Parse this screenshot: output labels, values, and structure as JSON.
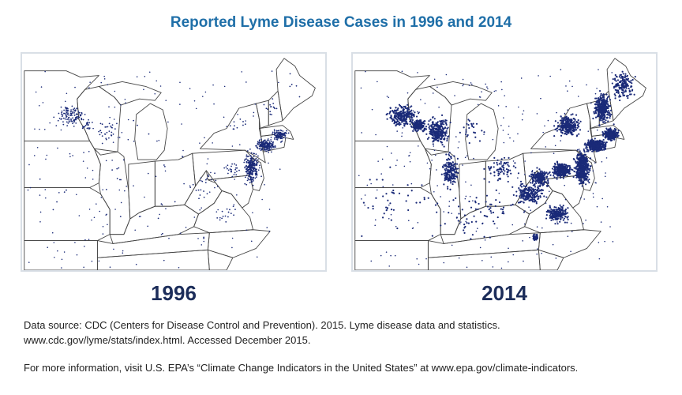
{
  "title": "Reported Lyme Disease Cases in 1996 and 2014",
  "maps": [
    {
      "year": "1996"
    },
    {
      "year": "2014"
    }
  ],
  "source_line1": "Data source: CDC (Centers for Disease Control and Prevention). 2015. Lyme disease data and statistics.",
  "source_line2": "www.cdc.gov/lyme/stats/index.html. Accessed December 2015.",
  "more_info": "For more information, visit U.S. EPA’s “Climate Change Indicators in the United States” at www.epa.gov/climate-indicators.",
  "colors": {
    "title": "#1f6fa8",
    "year_label": "#1c2d5a",
    "dot": "#1a2a78",
    "state_border": "#444444",
    "panel_border": "#d9dfe6"
  }
}
